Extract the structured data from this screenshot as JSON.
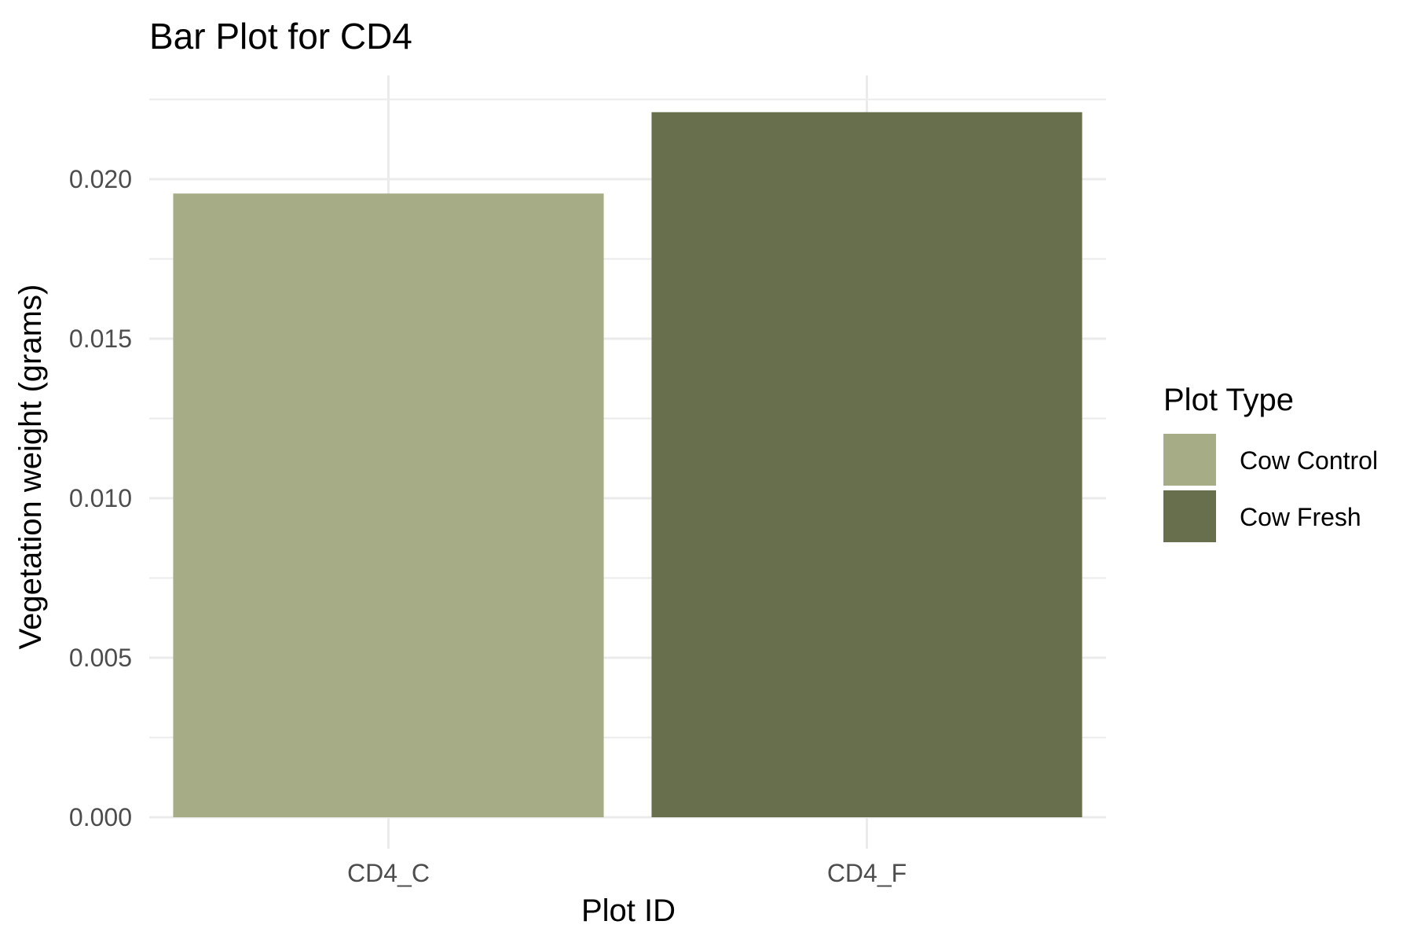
{
  "chart_data": {
    "type": "bar",
    "title": "Bar Plot for CD4",
    "xlabel": "Plot ID",
    "ylabel": "Vegetation weight (grams)",
    "categories": [
      "CD4_C",
      "CD4_F"
    ],
    "values": [
      0.01955,
      0.0221
    ],
    "fill_groups": [
      "Cow Control",
      "Cow Fresh"
    ],
    "ylim": [
      0,
      0.0225
    ],
    "y_ticks": [
      0.0,
      0.005,
      0.01,
      0.015,
      0.02
    ],
    "y_tick_labels": [
      "0.000",
      "0.005",
      "0.010",
      "0.015",
      "0.020"
    ],
    "grid": true,
    "legend": {
      "title": "Plot Type",
      "placement": "right",
      "entries": [
        {
          "label": "Cow Control",
          "color": "#a5ac86"
        },
        {
          "label": "Cow Fresh",
          "color": "#676f4c"
        }
      ]
    },
    "colors": {
      "Cow Control": "#a5ac86",
      "Cow Fresh": "#676f4c"
    }
  }
}
